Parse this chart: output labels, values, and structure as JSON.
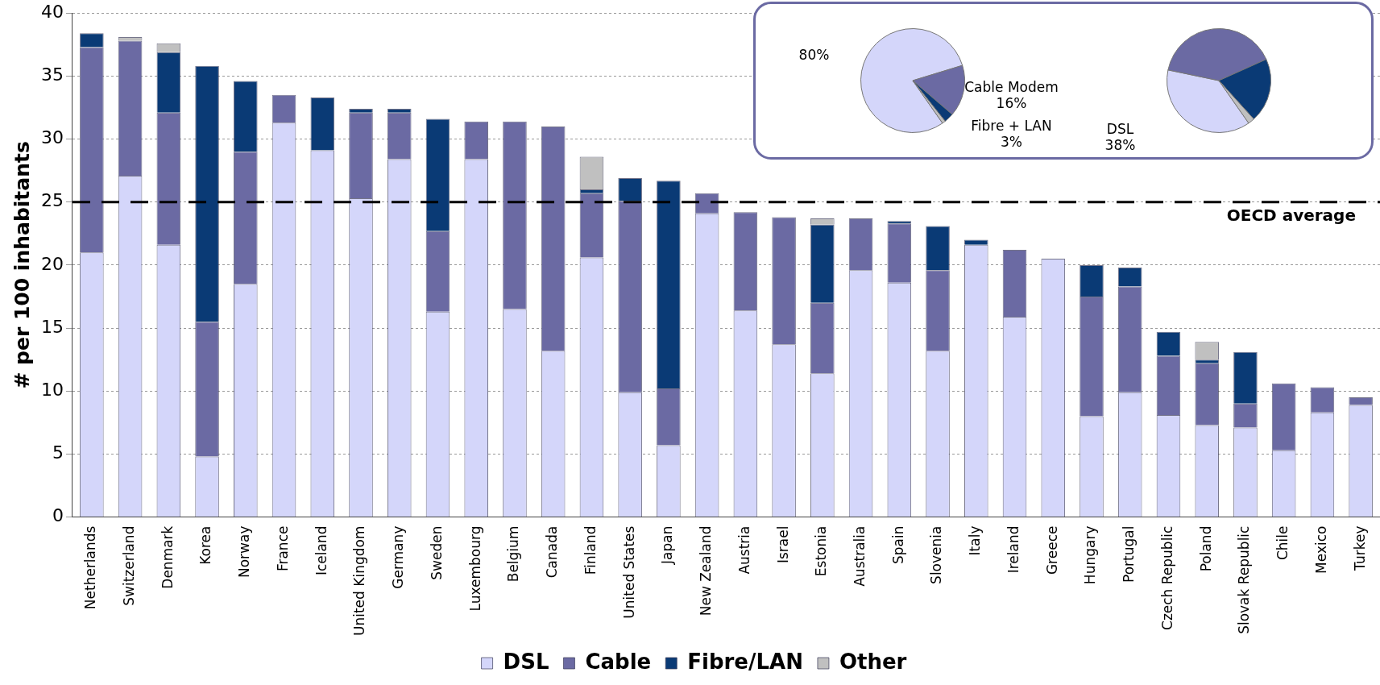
{
  "chart_data": [
    {
      "type": "bar",
      "ylabel": "# per 100 inhabitants",
      "categories": [
        "Netherlands",
        "Switzerland",
        "Denmark",
        "Korea",
        "Norway",
        "France",
        "Iceland",
        "United Kingdom",
        "Germany",
        "Sweden",
        "Luxembourg",
        "Belgium",
        "Canada",
        "Finland",
        "United States",
        "Japan",
        "New Zealand",
        "Austria",
        "Israel",
        "Estonia",
        "Australia",
        "Spain",
        "Slovenia",
        "Italy",
        "Ireland",
        "Greece",
        "Hungary",
        "Portugal",
        "Czech Republic",
        "Poland",
        "Slovak Republic",
        "Chile",
        "Mexico",
        "Turkey"
      ],
      "stacked": true,
      "series": [
        {
          "name": "DSL",
          "color": "#d4d6fa",
          "values": [
            21.0,
            27.1,
            21.6,
            4.8,
            18.5,
            31.3,
            29.1,
            25.3,
            28.4,
            16.3,
            28.4,
            16.5,
            13.2,
            20.6,
            9.9,
            5.7,
            24.1,
            16.4,
            13.7,
            11.4,
            19.6,
            18.6,
            13.2,
            21.6,
            15.9,
            20.5,
            8.0,
            9.9,
            8.1,
            7.3,
            7.1,
            5.3,
            8.3,
            8.9
          ]
        },
        {
          "name": "Cable",
          "color": "#6b6aa3",
          "values": [
            16.3,
            10.7,
            10.5,
            10.7,
            10.5,
            2.2,
            0,
            6.8,
            3.7,
            6.4,
            3.0,
            14.9,
            17.8,
            5.1,
            15.2,
            4.5,
            1.6,
            7.8,
            10.1,
            5.6,
            4.1,
            4.7,
            6.4,
            0,
            5.3,
            0,
            9.5,
            8.4,
            4.7,
            4.9,
            1.9,
            5.3,
            2.0,
            0.6
          ]
        },
        {
          "name": "Fibre/LAN",
          "color": "#0a3a75",
          "values": [
            1.1,
            0,
            4.8,
            20.3,
            5.6,
            0,
            4.2,
            0.3,
            0.3,
            8.9,
            0,
            0,
            0,
            0.3,
            1.8,
            16.5,
            0,
            0,
            0,
            6.2,
            0,
            0.2,
            3.5,
            0.4,
            0,
            0,
            2.5,
            1.5,
            1.9,
            0.3,
            4.1,
            0,
            0,
            0
          ]
        },
        {
          "name": "Other",
          "color": "#c0c0c0",
          "values": [
            0,
            0.3,
            0.7,
            0,
            0,
            0,
            0,
            0,
            0,
            0,
            0,
            0,
            0,
            2.6,
            0,
            0,
            0,
            0,
            0,
            0.5,
            0,
            0,
            0,
            0,
            0,
            0,
            0,
            0,
            0,
            1.4,
            0,
            0,
            0,
            0
          ]
        }
      ],
      "ylim": [
        0,
        40
      ],
      "yticks": [
        0,
        5,
        10,
        15,
        20,
        25,
        30,
        35,
        40
      ],
      "grid": "y",
      "legend": "bottom",
      "ref_lines": [
        {
          "axis": "y",
          "value": 25,
          "label": "OECD average",
          "color": "#000000",
          "line_style": "dashed"
        }
      ]
    },
    {
      "type": "pie",
      "categories": [
        null,
        "Cable Modem",
        "Fibre + LAN",
        null
      ],
      "values": [
        80,
        16,
        3,
        1
      ],
      "colors": [
        "#d4d6fa",
        "#6b6aa3",
        "#0a3a75",
        "#c0c0c0"
      ],
      "value_labels": [
        "80%",
        "16%",
        "3%",
        null
      ]
    },
    {
      "type": "pie",
      "categories": [
        "DSL",
        null,
        null,
        null
      ],
      "values": [
        38,
        40,
        20,
        2
      ],
      "colors": [
        "#d4d6fa",
        "#6b6aa3",
        "#0a3a75",
        "#c0c0c0"
      ],
      "value_labels": [
        "38%",
        null,
        null,
        null
      ]
    }
  ]
}
